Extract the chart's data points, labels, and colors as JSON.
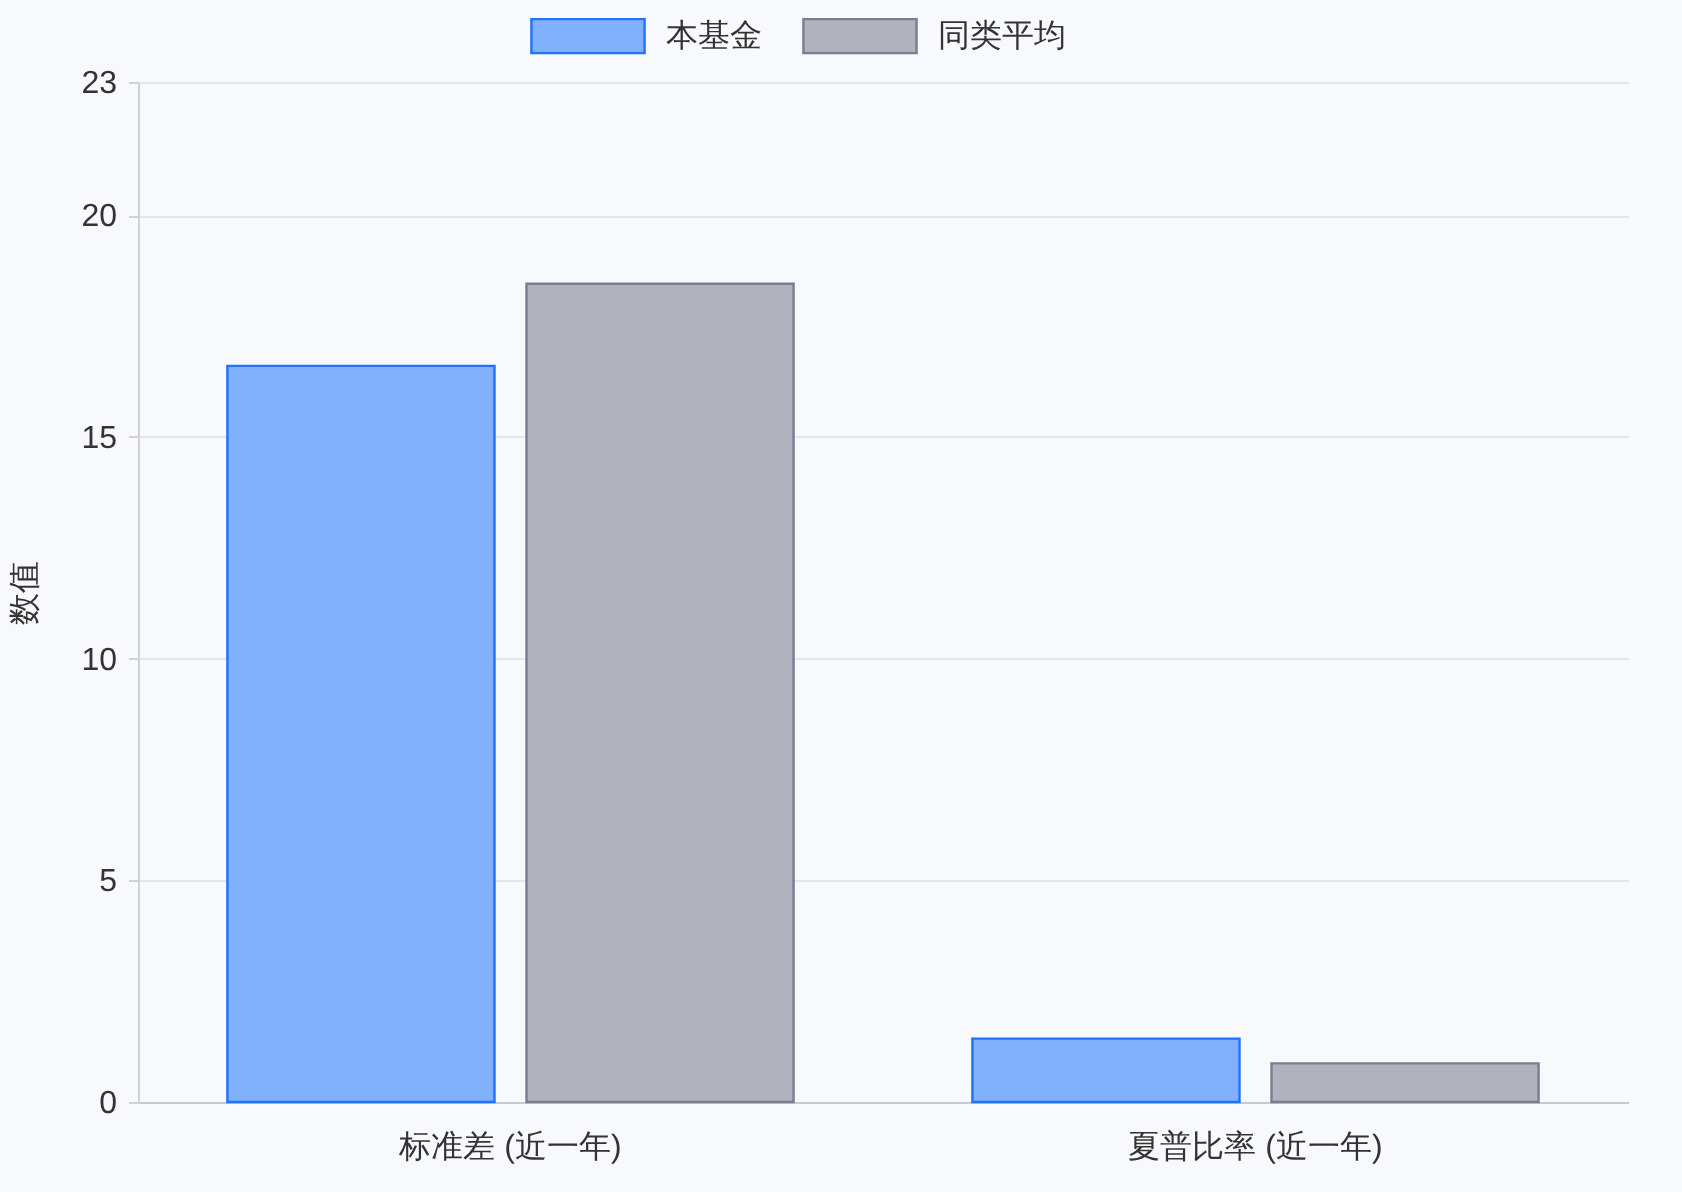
{
  "chart_data": {
    "type": "bar",
    "categories": [
      "标准差 (近一年)",
      "夏普比率 (近一年)"
    ],
    "series": [
      {
        "name": "本基金",
        "color": "#82b1fb",
        "values": [
          16.6,
          1.43
        ]
      },
      {
        "name": "同类平均",
        "color": "#b0b3bd",
        "values": [
          18.45,
          0.87
        ]
      }
    ],
    "ylabel": "数值",
    "ylim": [
      0,
      23
    ],
    "yticks": [
      0,
      5,
      10,
      15,
      20,
      23
    ],
    "grid": "y",
    "legend": "top"
  }
}
